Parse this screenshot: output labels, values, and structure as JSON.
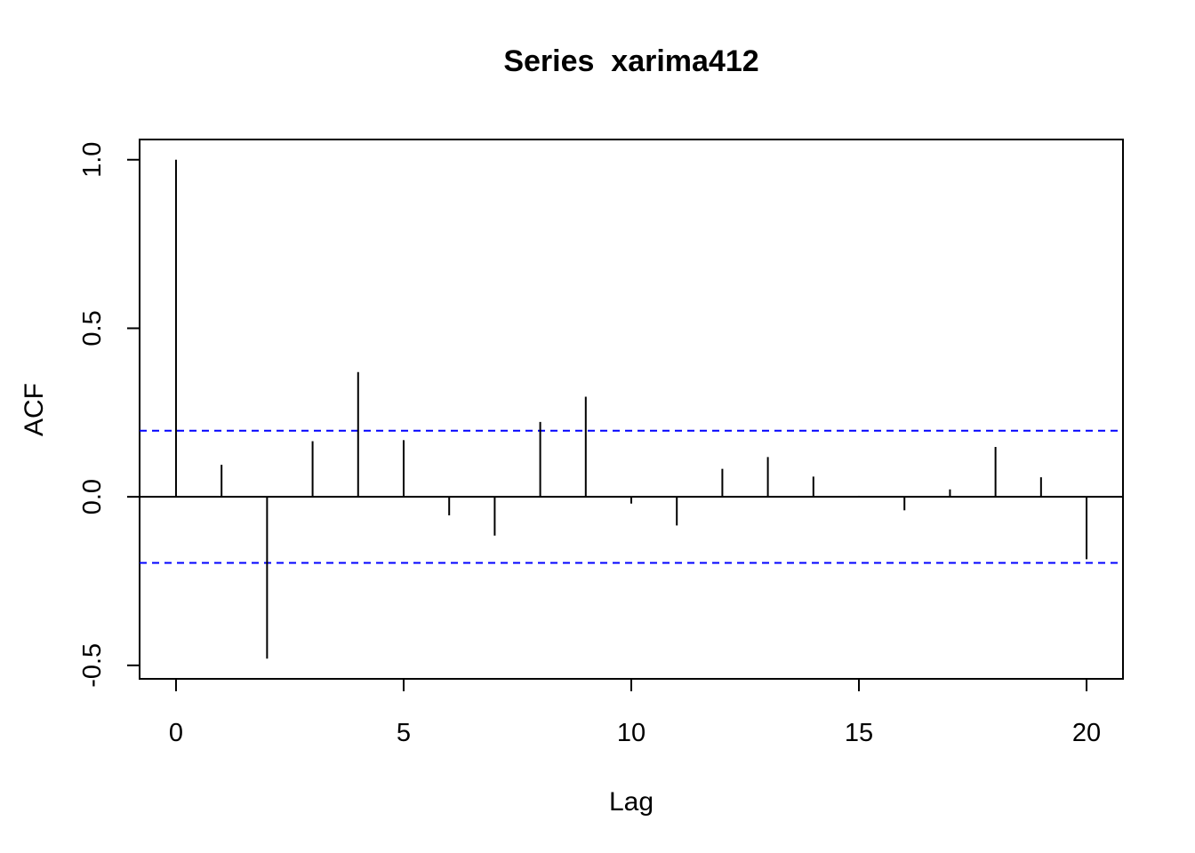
{
  "chart_data": {
    "type": "bar",
    "title": "Series  xarima412",
    "xlabel": "Lag",
    "ylabel": "ACF",
    "x": [
      0,
      1,
      2,
      3,
      4,
      5,
      6,
      7,
      8,
      9,
      10,
      11,
      12,
      13,
      14,
      15,
      16,
      17,
      18,
      19,
      20
    ],
    "values": [
      1.0,
      0.095,
      -0.48,
      0.165,
      0.37,
      0.168,
      -0.055,
      -0.115,
      0.222,
      0.297,
      -0.02,
      -0.085,
      0.083,
      0.118,
      0.06,
      0.003,
      -0.04,
      0.022,
      0.148,
      0.058,
      -0.185
    ],
    "confidence_bound": 0.196,
    "xlim": [
      -0.8,
      20.8
    ],
    "ylim": [
      -0.54,
      1.06
    ],
    "xticks": [
      "0",
      "5",
      "10",
      "15",
      "20"
    ],
    "yticks": [
      "-0.5",
      "0.0",
      "0.5",
      "1.0"
    ],
    "grid": false,
    "colors": {
      "bars": "#000000",
      "confidence": "#0000ff",
      "zero_line": "#000000"
    }
  }
}
